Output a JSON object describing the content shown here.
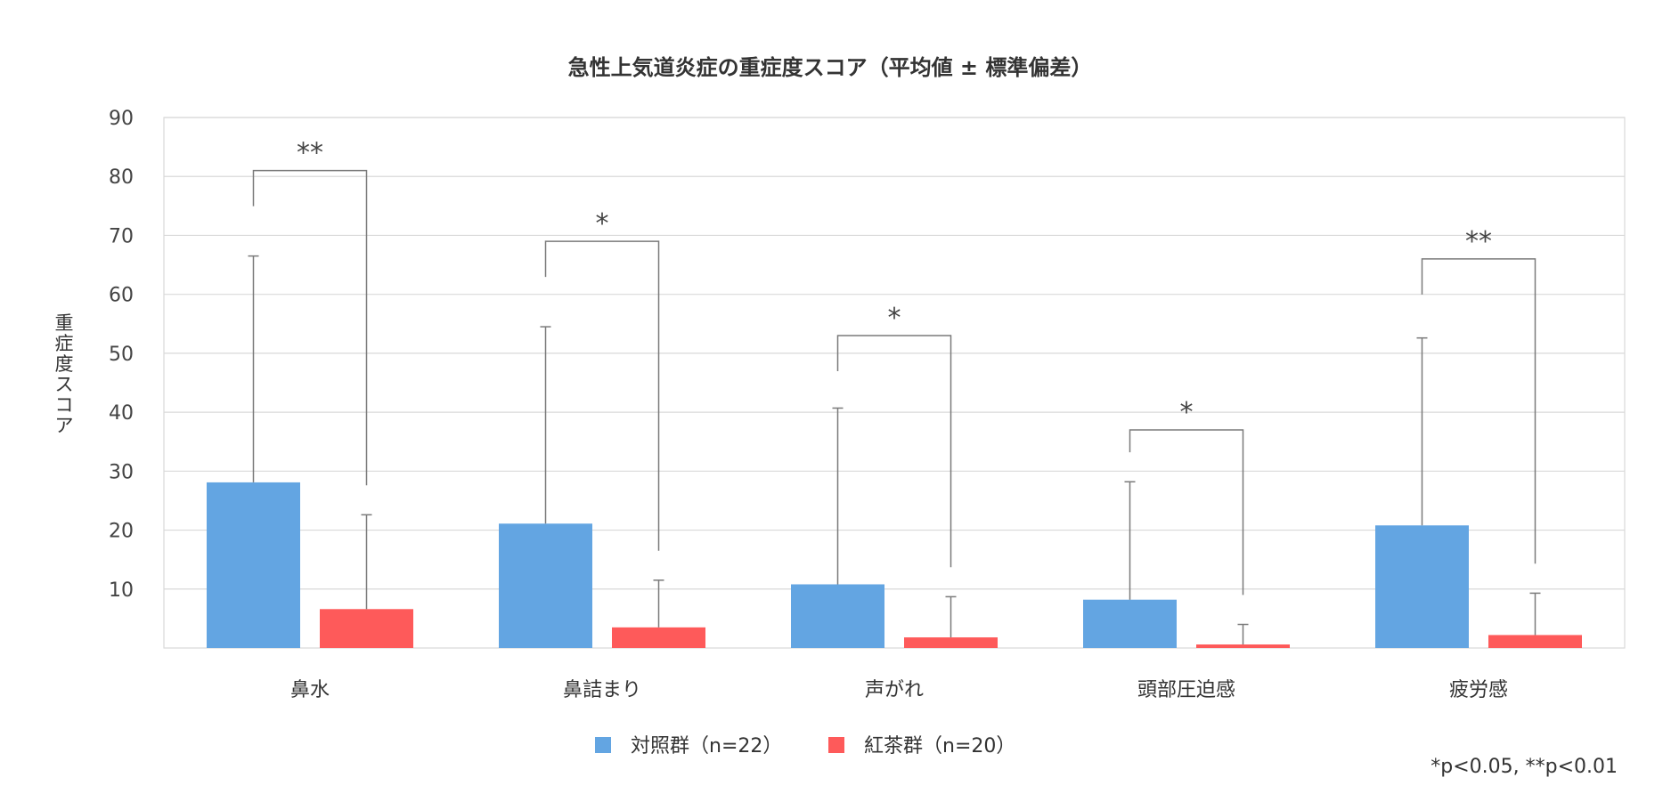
{
  "chart_data": {
    "type": "bar",
    "title": "急性上気道炎症の重症度スコア（平均値 ± 標準偏差）",
    "xlabel": "",
    "ylabel": "重症度スコア",
    "ylim": [
      0,
      90
    ],
    "yticks": [
      10,
      20,
      30,
      40,
      50,
      60,
      70,
      80,
      90
    ],
    "grid": true,
    "legend_position": "bottom",
    "categories": [
      "鼻水",
      "鼻詰まり",
      "声がれ",
      "頭部圧迫感",
      "疲労感"
    ],
    "series": [
      {
        "name": "対照群（n=22）",
        "color": "#63a5e2",
        "values": [
          28.1,
          21.1,
          10.8,
          8.2,
          20.8
        ],
        "sd": [
          38.4,
          33.4,
          29.9,
          20.0,
          31.8
        ]
      },
      {
        "name": "紅茶群（n=20）",
        "color": "#fe5a5a",
        "values": [
          6.6,
          3.5,
          1.8,
          0.6,
          2.2
        ],
        "sd": [
          16.0,
          8.0,
          6.9,
          3.4,
          7.1
        ]
      }
    ],
    "significance": [
      {
        "category": 0,
        "label": "**",
        "level": 81
      },
      {
        "category": 1,
        "label": "*",
        "level": 69
      },
      {
        "category": 2,
        "label": "*",
        "level": 53
      },
      {
        "category": 3,
        "label": "*",
        "level": 37
      },
      {
        "category": 4,
        "label": "**",
        "level": 66
      }
    ],
    "note": "*p<0.05, **p<0.01"
  }
}
